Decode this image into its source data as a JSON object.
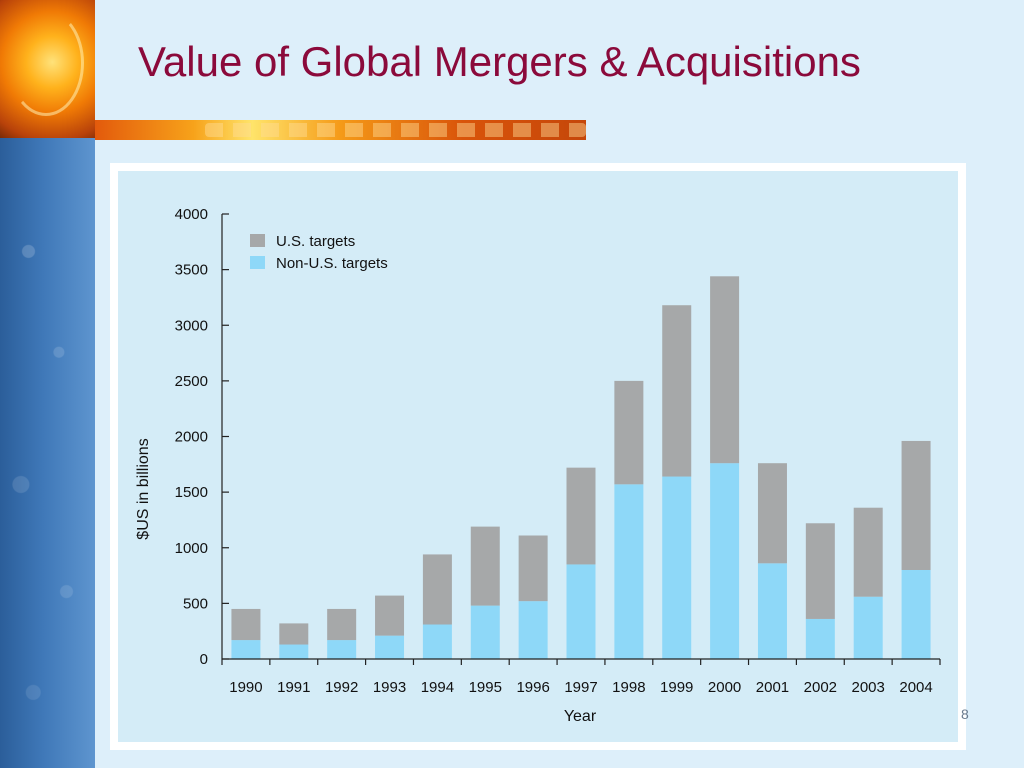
{
  "slide": {
    "title": "Value of Global Mergers & Acquisitions",
    "page_number": "8"
  },
  "colors": {
    "title": "#8b0a3b",
    "us_targets": "#a6a8a9",
    "non_us_targets": "#8ed8f8",
    "plot_background": "#d4ecf7"
  },
  "chart_data": {
    "type": "bar",
    "stacked": true,
    "categories": [
      "1990",
      "1991",
      "1992",
      "1993",
      "1994",
      "1995",
      "1996",
      "1997",
      "1998",
      "1999",
      "2000",
      "2001",
      "2002",
      "2003",
      "2004"
    ],
    "series": [
      {
        "name": "Non-U.S. targets",
        "values": [
          170,
          130,
          170,
          210,
          310,
          480,
          520,
          850,
          1570,
          1640,
          1760,
          860,
          360,
          560,
          800
        ]
      },
      {
        "name": "U.S. targets",
        "values": [
          280,
          190,
          280,
          360,
          630,
          710,
          590,
          870,
          930,
          1540,
          1680,
          900,
          860,
          800,
          1160
        ]
      }
    ],
    "legend": [
      "U.S. targets",
      "Non-U.S. targets"
    ],
    "legend_position": "top-left",
    "xlabel": "Year",
    "ylabel": "$US in billions",
    "ylim": [
      0,
      4000
    ],
    "yticks": [
      "0",
      "500",
      "1000",
      "1500",
      "2000",
      "2500",
      "3000",
      "3500",
      "4000"
    ],
    "grid": false
  }
}
